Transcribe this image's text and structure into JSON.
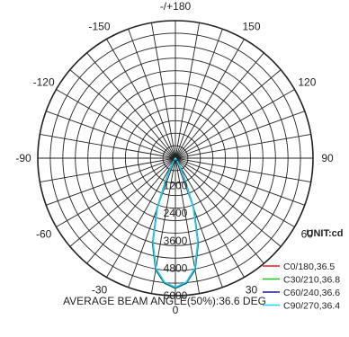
{
  "chart_data": {
    "type": "polar",
    "title": "",
    "unit_label": "UNIT:cd",
    "footer": "AVERAGE BEAM ANGLE(50%):36.6 DEG",
    "angle_labels": [
      {
        "deg": 180,
        "text": "-/+180"
      },
      {
        "deg": 150,
        "text": "150"
      },
      {
        "deg": 120,
        "text": "120"
      },
      {
        "deg": 90,
        "text": "90"
      },
      {
        "deg": 60,
        "text": "60"
      },
      {
        "deg": 30,
        "text": "30"
      },
      {
        "deg": 0,
        "text": "0"
      },
      {
        "deg": -30,
        "text": "-30"
      },
      {
        "deg": -60,
        "text": "-60"
      },
      {
        "deg": -90,
        "text": "-90"
      },
      {
        "deg": -120,
        "text": "-120"
      },
      {
        "deg": -150,
        "text": "-150"
      }
    ],
    "radial_ticks": [
      "0",
      "1200",
      "2400",
      "3600",
      "4800",
      "6000"
    ],
    "rmax": 6000,
    "grid": true,
    "legend_position": "bottom-right",
    "series": [
      {
        "name": "C0/180,36.5",
        "color": "#e8182a",
        "angles": [
          -90,
          -60,
          -40,
          -30,
          -25,
          -20,
          -15,
          -10,
          -5,
          0,
          5,
          10,
          15,
          20,
          25,
          30,
          40,
          60,
          90
        ],
        "values": [
          0,
          5,
          60,
          260,
          800,
          2300,
          3800,
          4900,
          5450,
          5650,
          5450,
          4900,
          3800,
          2300,
          800,
          260,
          60,
          5,
          0
        ]
      },
      {
        "name": "C30/210,36.8",
        "color": "#1fc21f",
        "angles": [
          -90,
          -60,
          -40,
          -30,
          -25,
          -20,
          -15,
          -10,
          -5,
          0,
          5,
          10,
          15,
          20,
          25,
          30,
          40,
          60,
          90
        ],
        "values": [
          0,
          5,
          60,
          270,
          820,
          2350,
          3850,
          4950,
          5480,
          5680,
          5480,
          4950,
          3850,
          2350,
          820,
          270,
          60,
          5,
          0
        ]
      },
      {
        "name": "C60/240,36.6",
        "color": "#1c1ca0",
        "angles": [
          -90,
          -60,
          -40,
          -30,
          -25,
          -20,
          -15,
          -10,
          -5,
          0,
          5,
          10,
          15,
          20,
          25,
          30,
          40,
          60,
          90
        ],
        "values": [
          0,
          5,
          60,
          265,
          810,
          2320,
          3820,
          4920,
          5460,
          5660,
          5460,
          4920,
          3820,
          2320,
          810,
          265,
          60,
          5,
          0
        ]
      },
      {
        "name": "C90/270,36.4",
        "color": "#22d3ee",
        "angles": [
          -90,
          -60,
          -40,
          -30,
          -25,
          -20,
          -15,
          -10,
          -5,
          0,
          5,
          10,
          15,
          20,
          25,
          30,
          40,
          60,
          90
        ],
        "values": [
          0,
          5,
          55,
          250,
          790,
          2280,
          3780,
          4880,
          5430,
          5630,
          5430,
          4880,
          3780,
          2280,
          790,
          250,
          55,
          5,
          0
        ]
      }
    ]
  }
}
